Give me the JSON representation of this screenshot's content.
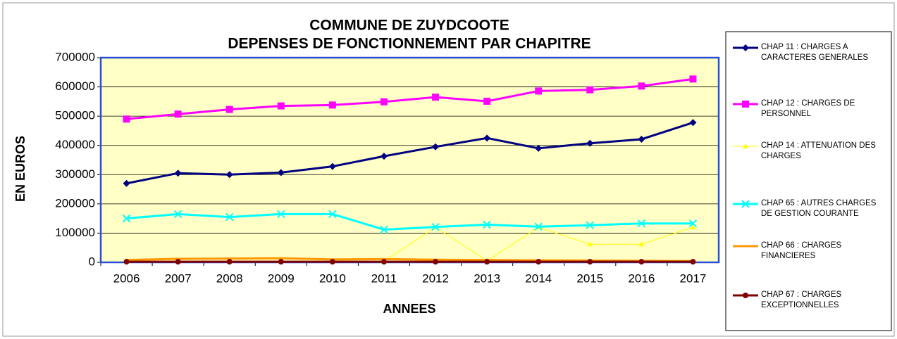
{
  "chart_data": {
    "type": "line",
    "title": "COMMUNE DE ZUYDCOOTE",
    "subtitle": "DEPENSES DE FONCTIONNEMENT PAR CHAPITRE",
    "x_label": "ANNEES",
    "y_label": "EN EUROS",
    "categories": [
      "2006",
      "2007",
      "2008",
      "2009",
      "2010",
      "2011",
      "2012",
      "2013",
      "2014",
      "2015",
      "2016",
      "2017"
    ],
    "ylim": [
      0,
      700000
    ],
    "yticks": [
      0,
      100000,
      200000,
      300000,
      400000,
      500000,
      600000,
      700000
    ],
    "grid": true,
    "legend": "right",
    "series": [
      {
        "name": "CHAP 11 : CHARGES A CARACTERES GENERALES",
        "color": "#000080",
        "marker": "diamond",
        "values": [
          270000,
          305000,
          300000,
          307000,
          328000,
          363000,
          395000,
          425000,
          390000,
          407000,
          421000,
          478000
        ]
      },
      {
        "name": "CHAP 12 : CHARGES DE PERSONNEL",
        "color": "#ff00ff",
        "marker": "square",
        "values": [
          490000,
          507000,
          523000,
          535000,
          538000,
          549000,
          565000,
          551000,
          586000,
          590000,
          603000,
          627000
        ]
      },
      {
        "name": "CHAP 14 : ATTENUATION DES CHARGES",
        "color": "#ffff00",
        "marker": "triangle",
        "values": [
          3000,
          3000,
          3000,
          3000,
          3000,
          3000,
          120000,
          5000,
          120000,
          62000,
          62000,
          120000
        ]
      },
      {
        "name": "CHAP 65 : AUTRES CHARGES DE GESTION COURANTE",
        "color": "#00ffff",
        "marker": "x",
        "values": [
          150000,
          165000,
          155000,
          165000,
          165000,
          112000,
          121000,
          129000,
          122000,
          127000,
          133000,
          133000
        ]
      },
      {
        "name": "CHAP 66 : CHARGES FINANCIERES",
        "color": "#ff9900",
        "marker": "none",
        "values": [
          8000,
          12000,
          13000,
          14000,
          10000,
          11000,
          9000,
          8000,
          7000,
          6000,
          5000,
          4000
        ]
      },
      {
        "name": "CHAP 67 : CHARGES EXCEPTIONNELLES",
        "color": "#800000",
        "marker": "circle",
        "values": [
          2000,
          2000,
          2000,
          2000,
          2000,
          2000,
          2000,
          2000,
          2000,
          2000,
          2000,
          2000
        ]
      }
    ]
  }
}
